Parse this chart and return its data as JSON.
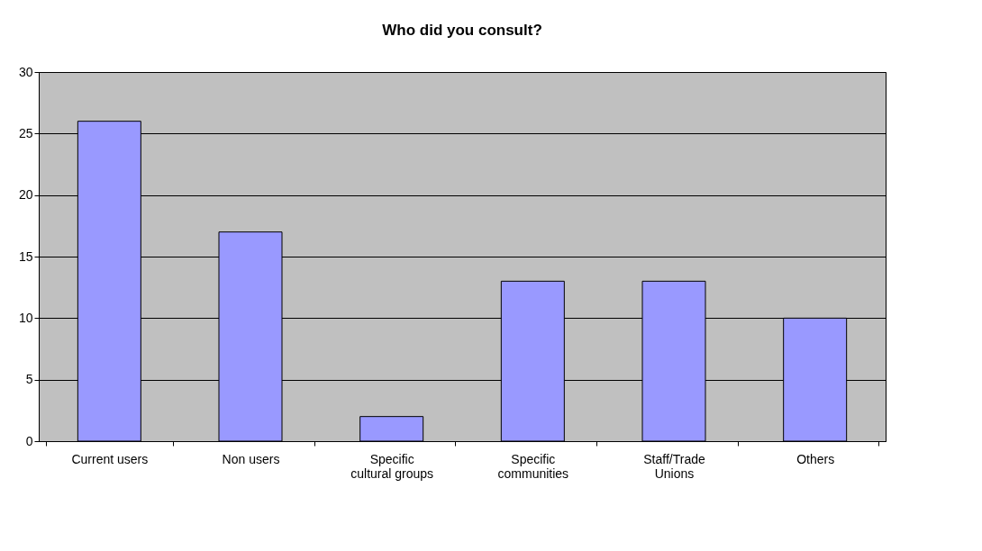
{
  "chart_data": {
    "type": "bar",
    "title": "Who did you consult?",
    "categories": [
      "Current users",
      "Non users",
      "Specific cultural groups",
      "Specific communities",
      "Staff/Trade Unions",
      "Others"
    ],
    "values": [
      26,
      17,
      2,
      13,
      13,
      10
    ],
    "color": "#9999ff",
    "ylim": [
      0,
      30
    ],
    "yticks": [
      0,
      5,
      10,
      15,
      20,
      25,
      30
    ],
    "grid": "y"
  }
}
